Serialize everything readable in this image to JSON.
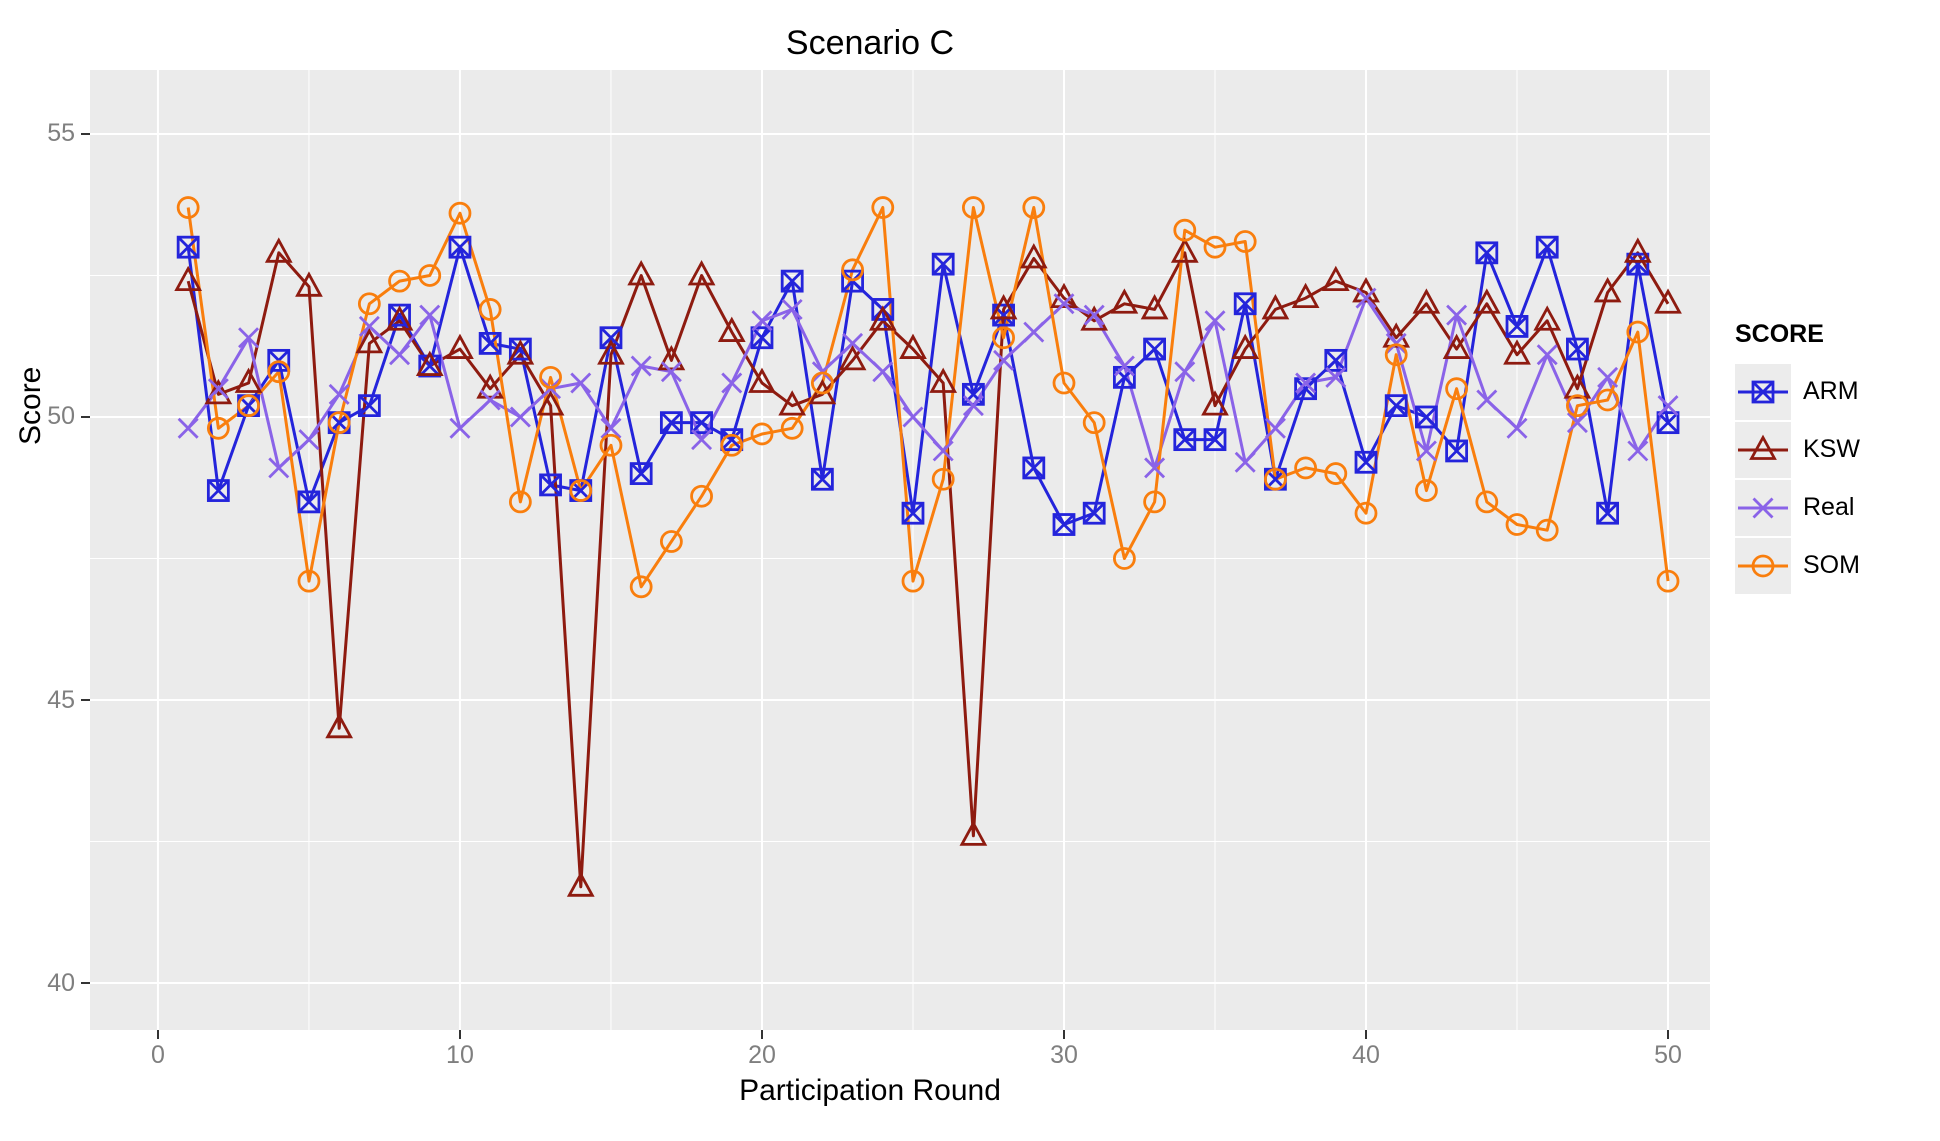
{
  "chart_data": {
    "type": "line",
    "title": "Scenario C",
    "xlabel": "Participation Round",
    "ylabel": "Score",
    "legend_title": "SCORE",
    "legend_position": "right",
    "grid": true,
    "xlim": [
      -2.25,
      51.39
    ],
    "ylim": [
      39.17,
      56.13
    ],
    "x_major_ticks": [
      0,
      10,
      20,
      30,
      40,
      50
    ],
    "x_minor_ticks": [
      5,
      15,
      25,
      35,
      45
    ],
    "y_major_ticks": [
      40,
      45,
      50,
      55
    ],
    "y_minor_ticks": [
      42.5,
      47.5,
      52.5
    ],
    "x": [
      1,
      2,
      3,
      4,
      5,
      6,
      7,
      8,
      9,
      10,
      11,
      12,
      13,
      14,
      15,
      16,
      17,
      18,
      19,
      20,
      21,
      22,
      23,
      24,
      25,
      26,
      27,
      28,
      29,
      30,
      31,
      32,
      33,
      34,
      35,
      36,
      37,
      38,
      39,
      40,
      41,
      42,
      43,
      44,
      45,
      46,
      47,
      48,
      49,
      50
    ],
    "series": [
      {
        "name": "ARM",
        "color": "#2424DB",
        "marker": "square-x",
        "values": [
          53.0,
          48.7,
          50.2,
          51.0,
          48.5,
          49.9,
          50.2,
          51.8,
          50.9,
          53.0,
          51.3,
          51.2,
          48.8,
          48.7,
          51.4,
          49.0,
          49.9,
          49.9,
          49.6,
          51.4,
          52.4,
          48.9,
          52.4,
          51.9,
          48.3,
          52.7,
          50.4,
          51.8,
          49.1,
          48.1,
          48.3,
          50.7,
          51.2,
          49.6,
          49.6,
          52.0,
          48.9,
          50.5,
          51.0,
          49.2,
          50.2,
          50.0,
          49.4,
          52.9,
          51.6,
          53.0,
          51.2,
          48.3,
          52.7,
          49.9
        ]
      },
      {
        "name": "KSW",
        "color": "#8E1B10",
        "marker": "triangle",
        "values": [
          52.4,
          50.4,
          50.6,
          52.9,
          52.3,
          44.5,
          51.3,
          51.7,
          50.9,
          51.2,
          50.5,
          51.1,
          50.2,
          41.7,
          51.1,
          52.5,
          51.0,
          52.5,
          51.5,
          50.6,
          50.2,
          50.4,
          51.0,
          51.7,
          51.2,
          50.6,
          42.6,
          51.9,
          52.8,
          52.1,
          51.7,
          52.0,
          51.9,
          52.9,
          50.2,
          51.2,
          51.9,
          52.1,
          52.4,
          52.2,
          51.4,
          52.0,
          51.2,
          52.0,
          51.1,
          51.7,
          50.5,
          52.2,
          52.9,
          52.0
        ]
      },
      {
        "name": "Real",
        "color": "#8A63E8",
        "marker": "x",
        "values": [
          49.8,
          50.5,
          51.4,
          49.1,
          49.6,
          50.4,
          51.6,
          51.1,
          51.8,
          49.8,
          50.3,
          50.0,
          50.5,
          50.6,
          49.8,
          50.9,
          50.8,
          49.6,
          50.6,
          51.7,
          51.9,
          50.8,
          51.3,
          50.8,
          50.0,
          49.4,
          50.2,
          51.0,
          51.5,
          52.0,
          51.8,
          50.9,
          49.1,
          50.8,
          51.7,
          49.2,
          49.8,
          50.6,
          50.7,
          52.1,
          51.3,
          49.4,
          51.8,
          50.3,
          49.8,
          51.1,
          49.9,
          50.7,
          49.4,
          50.2
        ]
      },
      {
        "name": "SOM",
        "color": "#F97E0D",
        "marker": "circle",
        "values": [
          53.7,
          49.8,
          50.2,
          50.8,
          47.1,
          49.9,
          52.0,
          52.4,
          52.5,
          53.6,
          51.9,
          48.5,
          50.7,
          48.7,
          49.5,
          47.0,
          47.8,
          48.6,
          49.5,
          49.7,
          49.8,
          50.6,
          52.6,
          53.7,
          47.1,
          48.9,
          53.7,
          51.4,
          53.7,
          50.6,
          49.9,
          47.5,
          48.5,
          53.3,
          53.0,
          53.1,
          48.9,
          49.1,
          49.0,
          48.3,
          51.1,
          48.7,
          50.5,
          48.5,
          48.1,
          48.0,
          50.2,
          50.3,
          51.5,
          47.1
        ]
      }
    ],
    "style": {
      "panel_background": "#EBEBEB",
      "grid_color": "#FFFFFF",
      "tick_label_color": "#7F7F7F",
      "tick_mark_color": "#333333",
      "title_color": "#000000",
      "legend_key_background": "#ECECEC"
    }
  }
}
